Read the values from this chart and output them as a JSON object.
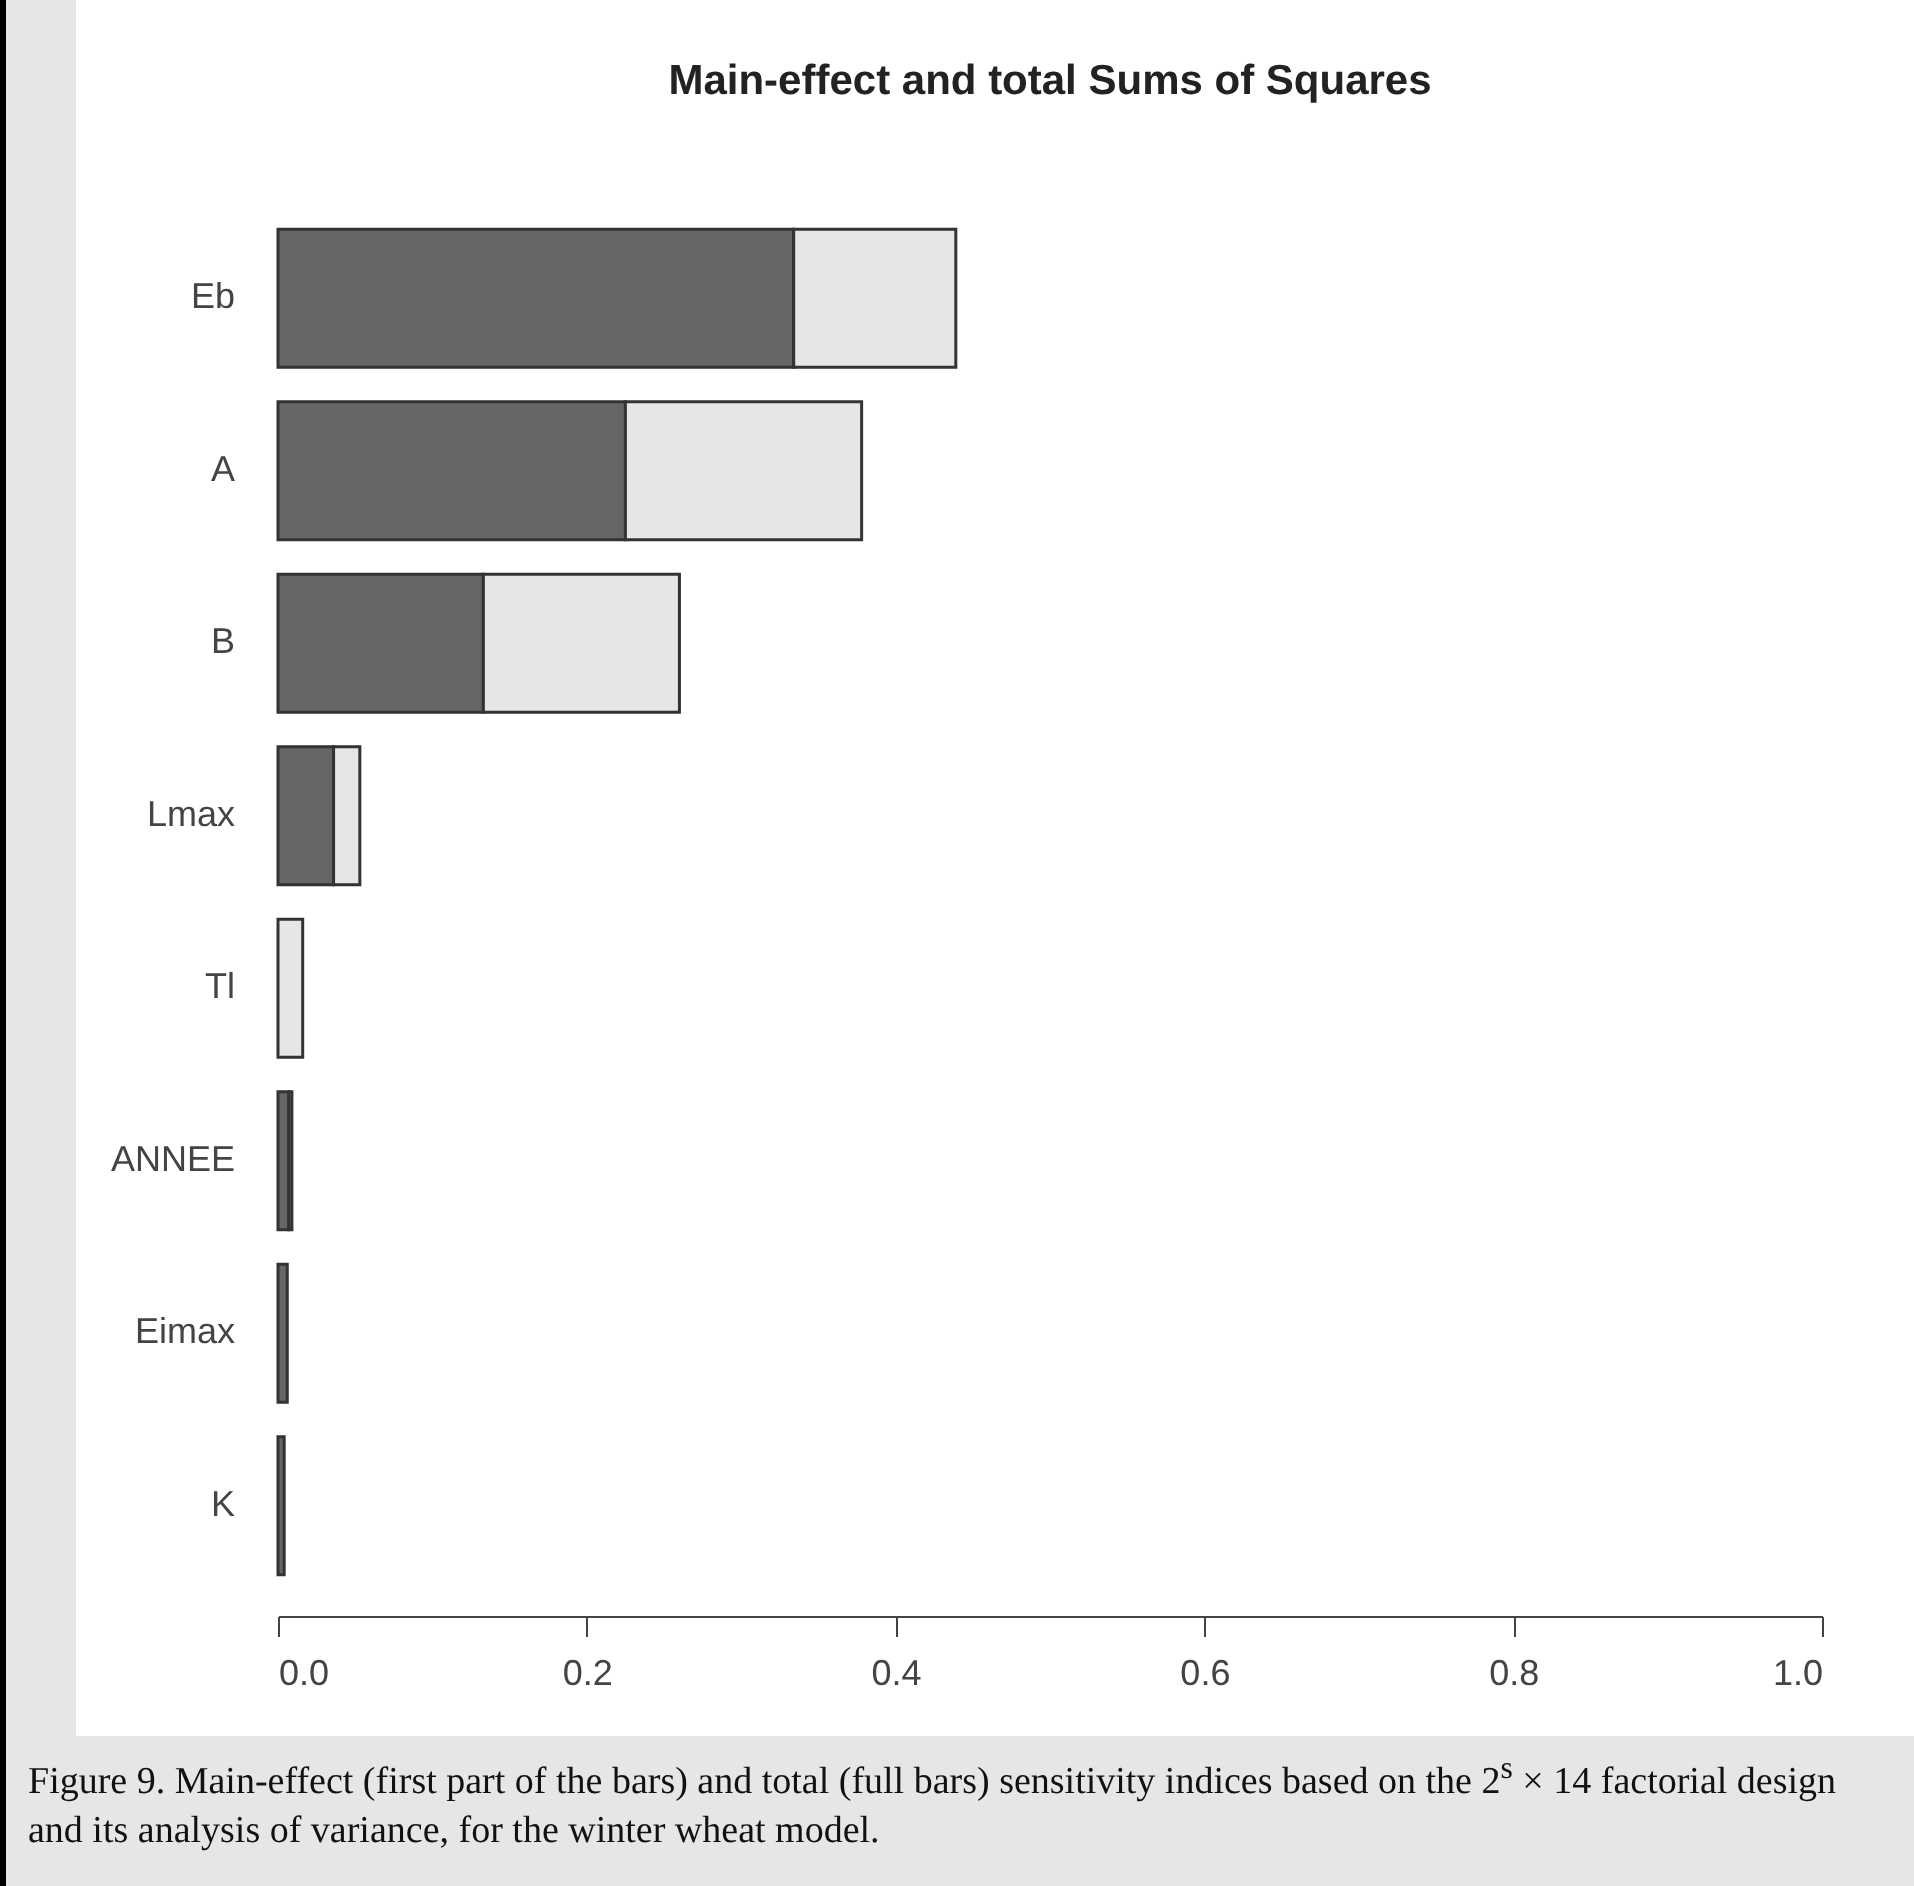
{
  "chart_data": {
    "type": "bar",
    "orientation": "horizontal",
    "stacked": true,
    "title": "Main-effect and total Sums of Squares",
    "categories": [
      "Eb",
      "A",
      "B",
      "Lmax",
      "Tl",
      "ANNEE",
      "Eimax",
      "K"
    ],
    "series": [
      {
        "color": "#666666",
        "values": [
          0.334,
          0.225,
          0.133,
          0.036,
          null,
          0.007,
          0.006,
          0.004
        ]
      },
      {
        "color": "#e6e6e6",
        "values": [
          0.105,
          0.153,
          0.127,
          0.017,
          0.016,
          0.002,
          null,
          null
        ]
      }
    ],
    "xlim": [
      0,
      1
    ],
    "xticks": [
      {
        "value": 0,
        "label": "0.0"
      },
      {
        "value": 0.2,
        "label": "0.2"
      },
      {
        "value": 0.4,
        "label": "0.4"
      },
      {
        "value": 0.6,
        "label": "0.6"
      },
      {
        "value": 0.8,
        "label": "0.8"
      },
      {
        "value": 1,
        "label": "1.0"
      }
    ],
    "grid": false,
    "legend": false,
    "annotations": [
      "Figure 9.  Main-effect (first part of the bars) and total (full bars) sensitivity indices based on the 2$^{s}$ × 14 factorial design and its analysis of variance, for the winter wheat model."
    ]
  }
}
